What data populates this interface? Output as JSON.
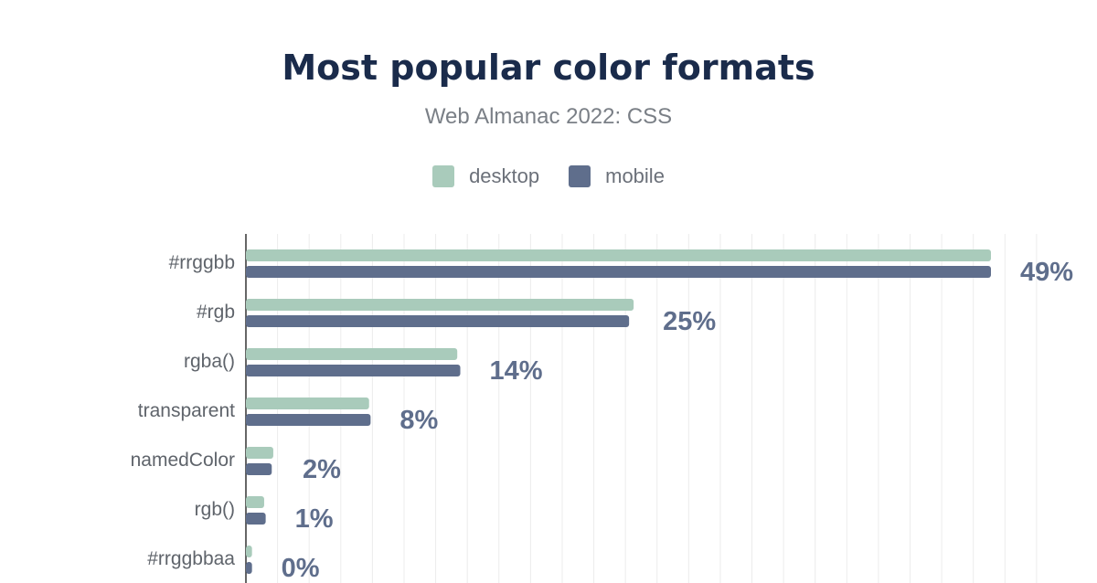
{
  "header": {
    "title": "Most popular color formats",
    "subtitle": "Web Almanac 2022: CSS"
  },
  "colors": {
    "desktop": "#a9cbbb",
    "mobile": "#5f6e8c",
    "title": "#1a2b4b",
    "grid": "#ececec",
    "axis": "#333333"
  },
  "chart_data": {
    "type": "bar",
    "orientation": "horizontal",
    "title": "Most popular color formats",
    "subtitle": "Web Almanac 2022: CSS",
    "xlabel": "",
    "ylabel": "",
    "legend_position": "top-center",
    "grid": true,
    "xlim": [
      0,
      50
    ],
    "categories": [
      "#rrggbb",
      "#rgb",
      "rgba()",
      "transparent",
      "namedColor",
      "rgb()",
      "#rrggbbaa"
    ],
    "series": [
      {
        "name": "desktop",
        "values": [
          49.0,
          25.5,
          13.9,
          8.1,
          1.8,
          1.2,
          0.4
        ]
      },
      {
        "name": "mobile",
        "values": [
          49.0,
          25.2,
          14.1,
          8.2,
          1.7,
          1.3,
          0.4
        ]
      }
    ],
    "data_labels": [
      "49%",
      "25%",
      "14%",
      "8%",
      "2%",
      "1%",
      "0%"
    ]
  }
}
